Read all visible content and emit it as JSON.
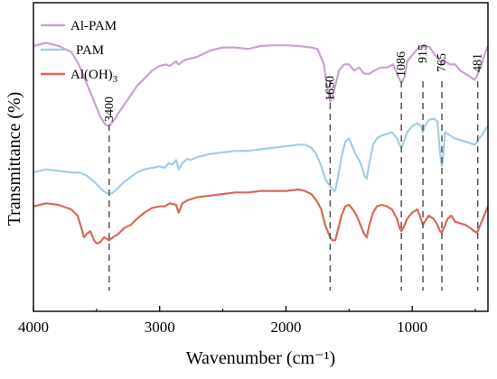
{
  "chart_data": {
    "type": "line",
    "title": "",
    "xlabel": "Wavenumber (cm⁻¹)",
    "ylabel": "Transmittance (%)",
    "xlim": [
      4000,
      400
    ],
    "x_reversed": true,
    "y_ticks_shown": false,
    "x_ticks": [
      4000,
      3000,
      2000,
      1000
    ],
    "grid": false,
    "legend_position": "top-left",
    "peak_markers": [
      {
        "wavenumber": 3400,
        "label": "3400"
      },
      {
        "wavenumber": 1650,
        "label": "1650"
      },
      {
        "wavenumber": 1086,
        "label": "1086"
      },
      {
        "wavenumber": 915,
        "label": "915"
      },
      {
        "wavenumber": 765,
        "label": "765"
      },
      {
        "wavenumber": 481,
        "label": "481"
      }
    ],
    "series": [
      {
        "name": "Al-PAM",
        "color": "#c9a3cf",
        "points": [
          [
            4000,
            0.86
          ],
          [
            3900,
            0.87
          ],
          [
            3800,
            0.86
          ],
          [
            3700,
            0.84
          ],
          [
            3640,
            0.8
          ],
          [
            3580,
            0.74
          ],
          [
            3520,
            0.68
          ],
          [
            3470,
            0.63
          ],
          [
            3430,
            0.605
          ],
          [
            3400,
            0.6
          ],
          [
            3370,
            0.615
          ],
          [
            3330,
            0.64
          ],
          [
            3280,
            0.67
          ],
          [
            3230,
            0.7
          ],
          [
            3180,
            0.73
          ],
          [
            3120,
            0.755
          ],
          [
            3060,
            0.78
          ],
          [
            3000,
            0.795
          ],
          [
            2950,
            0.8
          ],
          [
            2920,
            0.795
          ],
          [
            2870,
            0.81
          ],
          [
            2850,
            0.8
          ],
          [
            2800,
            0.815
          ],
          [
            2700,
            0.825
          ],
          [
            2600,
            0.845
          ],
          [
            2500,
            0.855
          ],
          [
            2400,
            0.855
          ],
          [
            2300,
            0.85
          ],
          [
            2200,
            0.86
          ],
          [
            2100,
            0.862
          ],
          [
            2000,
            0.862
          ],
          [
            1900,
            0.86
          ],
          [
            1800,
            0.855
          ],
          [
            1750,
            0.85
          ],
          [
            1700,
            0.8
          ],
          [
            1680,
            0.74
          ],
          [
            1660,
            0.7
          ],
          [
            1650,
            0.68
          ],
          [
            1635,
            0.69
          ],
          [
            1610,
            0.73
          ],
          [
            1580,
            0.78
          ],
          [
            1540,
            0.8
          ],
          [
            1500,
            0.8
          ],
          [
            1460,
            0.78
          ],
          [
            1420,
            0.79
          ],
          [
            1380,
            0.77
          ],
          [
            1340,
            0.77
          ],
          [
            1300,
            0.78
          ],
          [
            1250,
            0.79
          ],
          [
            1200,
            0.79
          ],
          [
            1150,
            0.8
          ],
          [
            1110,
            0.76
          ],
          [
            1086,
            0.74
          ],
          [
            1060,
            0.76
          ],
          [
            1040,
            0.81
          ],
          [
            1000,
            0.83
          ],
          [
            960,
            0.85
          ],
          [
            930,
            0.86
          ],
          [
            915,
            0.855
          ],
          [
            890,
            0.86
          ],
          [
            860,
            0.855
          ],
          [
            820,
            0.83
          ],
          [
            790,
            0.82
          ],
          [
            765,
            0.8
          ],
          [
            740,
            0.81
          ],
          [
            700,
            0.8
          ],
          [
            660,
            0.8
          ],
          [
            620,
            0.78
          ],
          [
            580,
            0.77
          ],
          [
            540,
            0.76
          ],
          [
            510,
            0.75
          ],
          [
            490,
            0.76
          ],
          [
            481,
            0.77
          ],
          [
            450,
            0.8
          ],
          [
            420,
            0.84
          ],
          [
            400,
            0.86
          ]
        ]
      },
      {
        "name": "PAM",
        "color": "#a5cde3",
        "points": [
          [
            4000,
            0.45
          ],
          [
            3900,
            0.46
          ],
          [
            3800,
            0.455
          ],
          [
            3700,
            0.45
          ],
          [
            3640,
            0.45
          ],
          [
            3580,
            0.44
          ],
          [
            3520,
            0.42
          ],
          [
            3470,
            0.4
          ],
          [
            3430,
            0.385
          ],
          [
            3400,
            0.38
          ],
          [
            3370,
            0.385
          ],
          [
            3330,
            0.4
          ],
          [
            3280,
            0.42
          ],
          [
            3230,
            0.435
          ],
          [
            3180,
            0.45
          ],
          [
            3120,
            0.46
          ],
          [
            3060,
            0.465
          ],
          [
            3000,
            0.47
          ],
          [
            2960,
            0.465
          ],
          [
            2930,
            0.48
          ],
          [
            2900,
            0.475
          ],
          [
            2870,
            0.49
          ],
          [
            2850,
            0.46
          ],
          [
            2820,
            0.48
          ],
          [
            2780,
            0.495
          ],
          [
            2760,
            0.49
          ],
          [
            2700,
            0.5
          ],
          [
            2600,
            0.51
          ],
          [
            2500,
            0.515
          ],
          [
            2400,
            0.52
          ],
          [
            2300,
            0.52
          ],
          [
            2200,
            0.525
          ],
          [
            2100,
            0.53
          ],
          [
            2000,
            0.535
          ],
          [
            1900,
            0.54
          ],
          [
            1850,
            0.54
          ],
          [
            1800,
            0.53
          ],
          [
            1760,
            0.51
          ],
          [
            1720,
            0.47
          ],
          [
            1690,
            0.43
          ],
          [
            1660,
            0.41
          ],
          [
            1640,
            0.4
          ],
          [
            1620,
            0.39
          ],
          [
            1610,
            0.39
          ],
          [
            1590,
            0.43
          ],
          [
            1560,
            0.5
          ],
          [
            1530,
            0.55
          ],
          [
            1500,
            0.56
          ],
          [
            1470,
            0.53
          ],
          [
            1450,
            0.51
          ],
          [
            1420,
            0.49
          ],
          [
            1400,
            0.47
          ],
          [
            1380,
            0.44
          ],
          [
            1360,
            0.43
          ],
          [
            1340,
            0.48
          ],
          [
            1310,
            0.54
          ],
          [
            1280,
            0.56
          ],
          [
            1240,
            0.57
          ],
          [
            1200,
            0.575
          ],
          [
            1160,
            0.58
          ],
          [
            1120,
            0.56
          ],
          [
            1100,
            0.54
          ],
          [
            1086,
            0.53
          ],
          [
            1070,
            0.545
          ],
          [
            1040,
            0.58
          ],
          [
            1000,
            0.6
          ],
          [
            960,
            0.61
          ],
          [
            930,
            0.6
          ],
          [
            915,
            0.58
          ],
          [
            900,
            0.6
          ],
          [
            870,
            0.62
          ],
          [
            830,
            0.625
          ],
          [
            800,
            0.615
          ],
          [
            780,
            0.52
          ],
          [
            770,
            0.48
          ],
          [
            765,
            0.47
          ],
          [
            755,
            0.5
          ],
          [
            740,
            0.58
          ],
          [
            700,
            0.57
          ],
          [
            660,
            0.56
          ],
          [
            620,
            0.555
          ],
          [
            580,
            0.55
          ],
          [
            540,
            0.545
          ],
          [
            510,
            0.54
          ],
          [
            490,
            0.545
          ],
          [
            481,
            0.555
          ],
          [
            450,
            0.57
          ],
          [
            420,
            0.59
          ],
          [
            400,
            0.6
          ]
        ]
      },
      {
        "name": "Al(OH)3",
        "color": "#d9685a",
        "points": [
          [
            4000,
            0.34
          ],
          [
            3900,
            0.35
          ],
          [
            3800,
            0.345
          ],
          [
            3700,
            0.33
          ],
          [
            3650,
            0.31
          ],
          [
            3620,
            0.27
          ],
          [
            3600,
            0.24
          ],
          [
            3580,
            0.25
          ],
          [
            3550,
            0.26
          ],
          [
            3520,
            0.23
          ],
          [
            3500,
            0.22
          ],
          [
            3470,
            0.225
          ],
          [
            3440,
            0.24
          ],
          [
            3420,
            0.235
          ],
          [
            3400,
            0.23
          ],
          [
            3370,
            0.24
          ],
          [
            3330,
            0.25
          ],
          [
            3280,
            0.27
          ],
          [
            3230,
            0.28
          ],
          [
            3180,
            0.3
          ],
          [
            3120,
            0.32
          ],
          [
            3060,
            0.335
          ],
          [
            3000,
            0.34
          ],
          [
            2960,
            0.34
          ],
          [
            2920,
            0.35
          ],
          [
            2870,
            0.345
          ],
          [
            2850,
            0.32
          ],
          [
            2820,
            0.35
          ],
          [
            2780,
            0.36
          ],
          [
            2700,
            0.37
          ],
          [
            2600,
            0.375
          ],
          [
            2500,
            0.38
          ],
          [
            2400,
            0.385
          ],
          [
            2300,
            0.385
          ],
          [
            2200,
            0.39
          ],
          [
            2100,
            0.39
          ],
          [
            2000,
            0.39
          ],
          [
            1900,
            0.395
          ],
          [
            1850,
            0.39
          ],
          [
            1800,
            0.38
          ],
          [
            1760,
            0.36
          ],
          [
            1720,
            0.33
          ],
          [
            1690,
            0.28
          ],
          [
            1660,
            0.25
          ],
          [
            1650,
            0.24
          ],
          [
            1630,
            0.23
          ],
          [
            1610,
            0.23
          ],
          [
            1590,
            0.26
          ],
          [
            1560,
            0.31
          ],
          [
            1530,
            0.34
          ],
          [
            1500,
            0.345
          ],
          [
            1470,
            0.33
          ],
          [
            1440,
            0.31
          ],
          [
            1420,
            0.29
          ],
          [
            1400,
            0.27
          ],
          [
            1380,
            0.25
          ],
          [
            1360,
            0.24
          ],
          [
            1340,
            0.28
          ],
          [
            1310,
            0.32
          ],
          [
            1280,
            0.34
          ],
          [
            1240,
            0.345
          ],
          [
            1200,
            0.34
          ],
          [
            1160,
            0.33
          ],
          [
            1120,
            0.3
          ],
          [
            1100,
            0.27
          ],
          [
            1086,
            0.26
          ],
          [
            1070,
            0.27
          ],
          [
            1040,
            0.3
          ],
          [
            1000,
            0.32
          ],
          [
            960,
            0.33
          ],
          [
            940,
            0.31
          ],
          [
            915,
            0.28
          ],
          [
            900,
            0.29
          ],
          [
            870,
            0.31
          ],
          [
            830,
            0.3
          ],
          [
            800,
            0.28
          ],
          [
            780,
            0.26
          ],
          [
            765,
            0.255
          ],
          [
            750,
            0.27
          ],
          [
            720,
            0.3
          ],
          [
            690,
            0.31
          ],
          [
            660,
            0.29
          ],
          [
            620,
            0.285
          ],
          [
            580,
            0.28
          ],
          [
            540,
            0.27
          ],
          [
            510,
            0.26
          ],
          [
            490,
            0.255
          ],
          [
            481,
            0.26
          ],
          [
            460,
            0.28
          ],
          [
            440,
            0.3
          ],
          [
            420,
            0.32
          ],
          [
            400,
            0.34
          ]
        ]
      }
    ]
  }
}
